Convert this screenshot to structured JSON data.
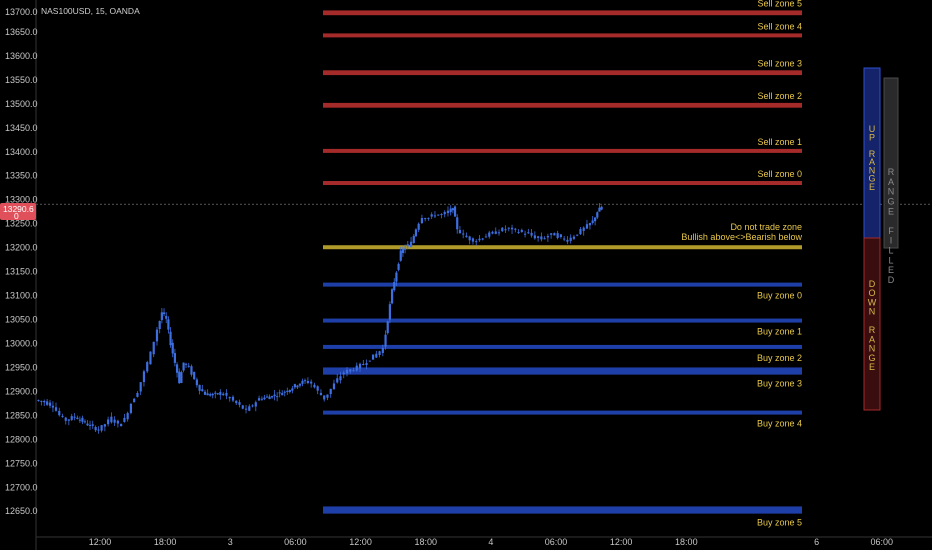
{
  "symbol_label": "NAS100USD, 15, OANDA",
  "colors": {
    "sell_zone": "#a52a2a",
    "buy_zone": "#1f3fa8",
    "neutral_zone": "#b09a2a",
    "candle": "#3d6fe0",
    "zone_text": "#e8c84a",
    "up_range_fill": "#15246a",
    "up_range_border": "#2e4fd0",
    "down_range_fill": "#3a0e0e",
    "down_range_border": "#a52a2a",
    "range_filled_fill": "#2a2a2a",
    "price_tag": "#e0505a"
  },
  "current_price": {
    "label": "13290.6",
    "value": 13290.6,
    "sub": "0"
  },
  "range_panel": {
    "up_label": "UP RANGE",
    "down_label": "DOWN RANGE",
    "filled_label": "RANGE FILLED"
  },
  "chart_data": {
    "type": "candlestick",
    "title": "",
    "y_axis": {
      "range": [
        12615,
        13700
      ],
      "ticks": [
        13650,
        13600,
        13550,
        13500,
        13450,
        13400,
        13350,
        13300,
        13250,
        13200,
        13150,
        13100,
        13050,
        13000,
        12950,
        12900,
        12850,
        12800,
        12750,
        12700,
        12650
      ],
      "tick_labels": [
        "13650.0",
        "13600.0",
        "13550.0",
        "13500.0",
        "13450.0",
        "13400.0",
        "13350.0",
        "13300.0",
        "13250.0",
        "13200.0",
        "13150.0",
        "13100.0",
        "13050.0",
        "13000.0",
        "12950.0",
        "12900.0",
        "12850.0",
        "12800.0",
        "12750.0",
        "12700.0",
        "12650.0"
      ],
      "top_label": "13700.0"
    },
    "x_axis": {
      "ticks": [
        12,
        18,
        24,
        30,
        36,
        42,
        48,
        54,
        60,
        66,
        72,
        78,
        84,
        90
      ],
      "tick_labels": [
        "12:00",
        "18:00",
        "3",
        "06:00",
        "12:00",
        "18:00",
        "4",
        "06:00",
        "12:00",
        "18:00",
        "6",
        "06:00"
      ],
      "tick_positions_h": [
        12,
        18,
        24,
        30,
        36,
        42,
        48,
        54,
        60,
        66,
        78,
        84
      ],
      "range_h": [
        6.2,
        86.6
      ]
    },
    "zones": [
      {
        "name": "Sell zone 5",
        "kind": "sell",
        "high": 13695,
        "low": 13685
      },
      {
        "name": "Sell zone 4",
        "kind": "sell",
        "high": 13647,
        "low": 13642
      },
      {
        "name": "Sell zone 3",
        "kind": "sell",
        "high": 13570,
        "low": 13560
      },
      {
        "name": "Sell zone 2",
        "kind": "sell",
        "high": 13502,
        "low": 13492
      },
      {
        "name": "Sell zone 1",
        "kind": "sell",
        "high": 13406,
        "low": 13398
      },
      {
        "name": "Sell zone 0",
        "kind": "sell",
        "high": 13339,
        "low": 13334
      },
      {
        "name": "Do not trade zone",
        "name2": "Bullish above<>Bearish below",
        "kind": "neutral",
        "high": 13205,
        "low": 13199
      },
      {
        "name": "Buy zone 0",
        "kind": "buy",
        "high": 13127,
        "low": 13121
      },
      {
        "name": "Buy zone 1",
        "kind": "buy",
        "high": 13052,
        "low": 13045
      },
      {
        "name": "Buy zone 2",
        "kind": "buy",
        "high": 12997,
        "low": 12993
      },
      {
        "name": "Buy zone 3",
        "kind": "buy",
        "high": 12950,
        "low": 12935
      },
      {
        "name": "Buy zone 4",
        "kind": "buy",
        "high": 12860,
        "low": 12852
      },
      {
        "name": "Buy zone 5",
        "kind": "buy",
        "high": 12660,
        "low": 12645
      }
    ],
    "zone_labels": [
      "Sell zone 5",
      "Sell zone 4",
      "Sell zone 3",
      "Sell zone 2",
      "Sell zone 1",
      "Sell zone 0",
      "Do not trade zone",
      "Bullish above<>Bearish below",
      "Buy zone 0",
      "Buy zone 1",
      "Buy zone 2",
      "Buy zone 3",
      "Buy zone 4",
      "Buy zone 5"
    ],
    "price_path": [
      [
        6.2,
        12882
      ],
      [
        7.0,
        12878
      ],
      [
        7.8,
        12870
      ],
      [
        8.4,
        12850
      ],
      [
        9.0,
        12840
      ],
      [
        9.8,
        12848
      ],
      [
        10.5,
        12838
      ],
      [
        11.2,
        12828
      ],
      [
        12.0,
        12820
      ],
      [
        12.6,
        12832
      ],
      [
        13.2,
        12845
      ],
      [
        13.8,
        12830
      ],
      [
        14.4,
        12842
      ],
      [
        15.0,
        12875
      ],
      [
        15.6,
        12900
      ],
      [
        16.2,
        12940
      ],
      [
        16.8,
        12980
      ],
      [
        17.4,
        13030
      ],
      [
        17.8,
        13065
      ],
      [
        18.2,
        13050
      ],
      [
        18.6,
        13000
      ],
      [
        19.0,
        12960
      ],
      [
        19.4,
        12920
      ],
      [
        19.8,
        12960
      ],
      [
        20.3,
        12950
      ],
      [
        20.8,
        12925
      ],
      [
        21.3,
        12905
      ],
      [
        21.8,
        12895
      ],
      [
        22.5,
        12892
      ],
      [
        23.2,
        12897
      ],
      [
        23.8,
        12890
      ],
      [
        24.4,
        12880
      ],
      [
        25.0,
        12870
      ],
      [
        25.6,
        12860
      ],
      [
        26.2,
        12872
      ],
      [
        26.8,
        12885
      ],
      [
        27.5,
        12888
      ],
      [
        28.2,
        12892
      ],
      [
        28.9,
        12898
      ],
      [
        29.6,
        12905
      ],
      [
        30.3,
        12915
      ],
      [
        31.0,
        12922
      ],
      [
        31.6,
        12917
      ],
      [
        32.2,
        12900
      ],
      [
        32.8,
        12885
      ],
      [
        33.4,
        12905
      ],
      [
        34.0,
        12925
      ],
      [
        34.6,
        12940
      ],
      [
        35.2,
        12945
      ],
      [
        35.8,
        12950
      ],
      [
        36.4,
        12958
      ],
      [
        37.0,
        12968
      ],
      [
        37.6,
        12978
      ],
      [
        38.2,
        12990
      ],
      [
        38.6,
        13050
      ],
      [
        39.0,
        13110
      ],
      [
        39.4,
        13150
      ],
      [
        39.8,
        13190
      ],
      [
        40.2,
        13200
      ],
      [
        40.8,
        13210
      ],
      [
        41.2,
        13240
      ],
      [
        41.8,
        13265
      ],
      [
        42.4,
        13262
      ],
      [
        43.0,
        13270
      ],
      [
        43.6,
        13268
      ],
      [
        44.2,
        13275
      ],
      [
        44.6,
        13282
      ],
      [
        45.0,
        13240
      ],
      [
        45.6,
        13225
      ],
      [
        46.2,
        13218
      ],
      [
        46.8,
        13215
      ],
      [
        47.4,
        13222
      ],
      [
        48.0,
        13228
      ],
      [
        48.6,
        13232
      ],
      [
        49.2,
        13238
      ],
      [
        49.8,
        13240
      ],
      [
        50.4,
        13236
      ],
      [
        51.0,
        13232
      ],
      [
        51.6,
        13228
      ],
      [
        52.2,
        13222
      ],
      [
        52.8,
        13218
      ],
      [
        53.4,
        13225
      ],
      [
        54.0,
        13228
      ],
      [
        54.6,
        13220
      ],
      [
        55.2,
        13216
      ],
      [
        55.8,
        13225
      ],
      [
        56.4,
        13235
      ],
      [
        57.0,
        13245
      ],
      [
        57.5,
        13255
      ],
      [
        57.9,
        13275
      ],
      [
        58.3,
        13285
      ]
    ]
  }
}
